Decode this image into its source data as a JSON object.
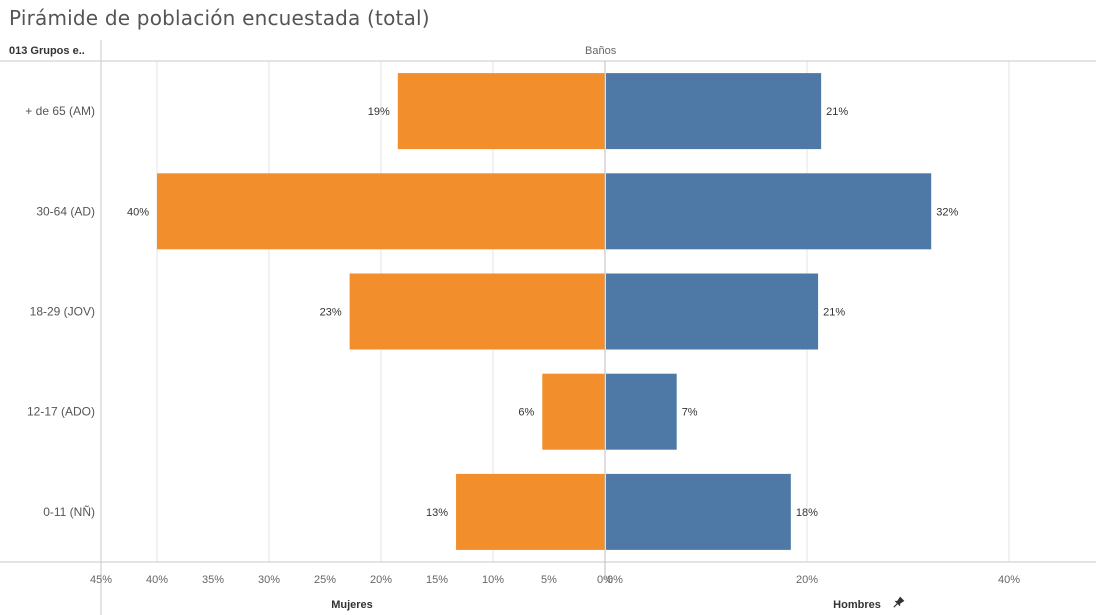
{
  "title": "Pirámide de población encuestada (total)",
  "row_header": "013 Grupos e..",
  "column_header": "Baños",
  "pin_icon": "pin-icon",
  "colors": {
    "mujeres": "#F28E2B",
    "hombres": "#4E79A7",
    "grid": "#e6e6e6",
    "axis": "#c8c8c8"
  },
  "chart_data": {
    "type": "bar",
    "categories": [
      "+ de 65 (AM)",
      "30-64 (AD)",
      "18-29 (JOV)",
      "12-17 (ADO)",
      "0-11 (NÑ)"
    ],
    "series": [
      {
        "name": "Mujeres",
        "values": [
          18.5,
          40,
          22.8,
          5.6,
          13.3
        ],
        "labels": [
          "19%",
          "40%",
          "23%",
          "6%",
          "13%"
        ]
      },
      {
        "name": "Hombres",
        "values": [
          21.3,
          32.2,
          21.0,
          7.0,
          18.3
        ],
        "labels": [
          "21%",
          "32%",
          "21%",
          "7%",
          "18%"
        ]
      }
    ],
    "left_axis": {
      "label": "Mujeres",
      "range": [
        45,
        0
      ],
      "ticks": [
        "45%",
        "40%",
        "35%",
        "30%",
        "25%",
        "20%",
        "15%",
        "10%",
        "5%",
        "0%"
      ]
    },
    "right_axis": {
      "label": "Hombres",
      "range": [
        0,
        50
      ],
      "ticks": [
        "0%",
        "20%",
        "40%"
      ]
    },
    "grid": true
  }
}
